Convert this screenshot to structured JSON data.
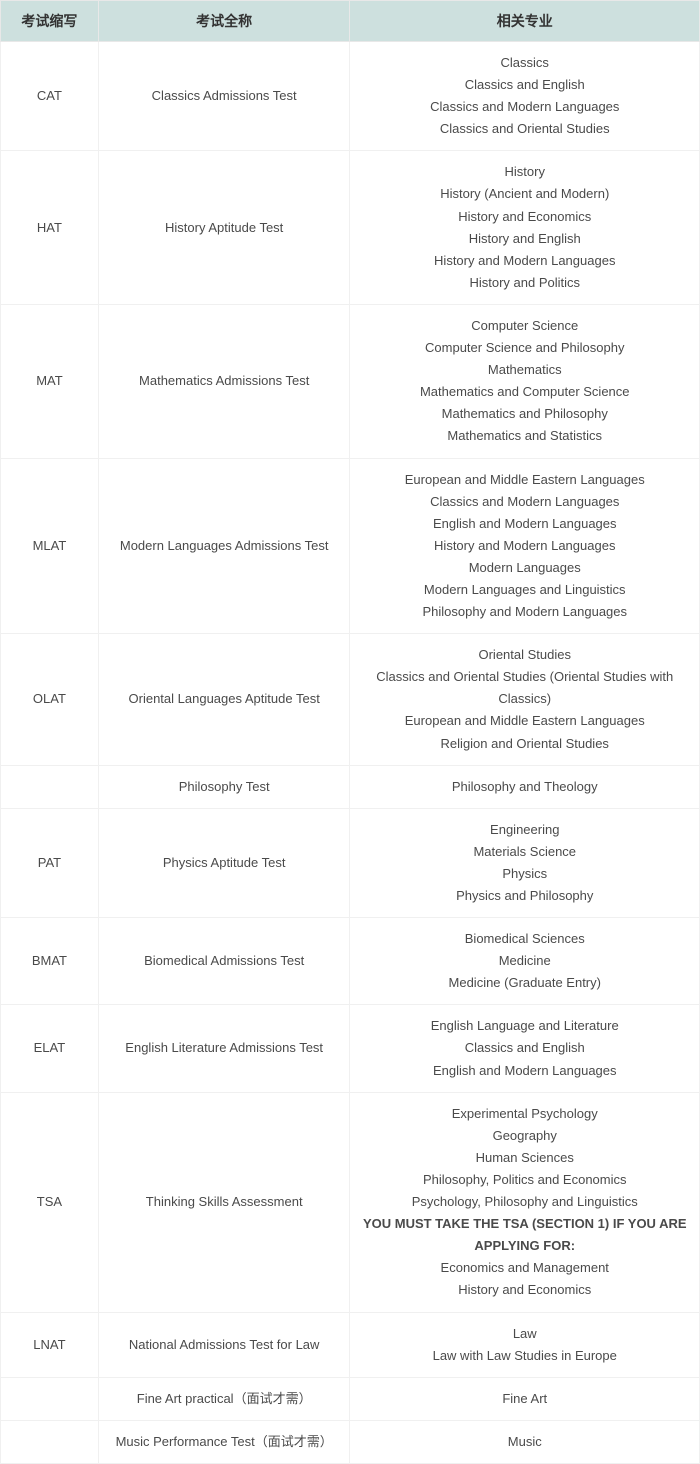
{
  "table": {
    "headers": {
      "abbr": "考试缩写",
      "fullname": "考试全称",
      "subjects": "相关专业"
    },
    "column_widths": [
      "14%",
      "36%",
      "50%"
    ],
    "header_bg_color": "#cde0de",
    "header_text_color": "#333333",
    "border_color": "#f0f0f0",
    "cell_text_color": "#4a4a4a",
    "header_fontsize": 14,
    "cell_fontsize": 13,
    "rows": [
      {
        "abbr": "CAT",
        "fullname": "Classics Admissions Test",
        "subjects": [
          {
            "text": "Classics",
            "bold": false
          },
          {
            "text": "Classics and English",
            "bold": false
          },
          {
            "text": "Classics and Modern Languages",
            "bold": false
          },
          {
            "text": "Classics and Oriental Studies",
            "bold": false
          }
        ]
      },
      {
        "abbr": "HAT",
        "fullname": "History Aptitude Test",
        "subjects": [
          {
            "text": "History",
            "bold": false
          },
          {
            "text": "History (Ancient and Modern)",
            "bold": false
          },
          {
            "text": "History and Economics",
            "bold": false
          },
          {
            "text": "History and English",
            "bold": false
          },
          {
            "text": "History and Modern Languages",
            "bold": false
          },
          {
            "text": "History and Politics",
            "bold": false
          }
        ]
      },
      {
        "abbr": "MAT",
        "fullname": "Mathematics Admissions Test",
        "subjects": [
          {
            "text": "Computer Science",
            "bold": false
          },
          {
            "text": "Computer Science and Philosophy",
            "bold": false
          },
          {
            "text": "Mathematics",
            "bold": false
          },
          {
            "text": "Mathematics and Computer Science",
            "bold": false
          },
          {
            "text": "Mathematics and Philosophy",
            "bold": false
          },
          {
            "text": "Mathematics and Statistics",
            "bold": false
          }
        ]
      },
      {
        "abbr": "MLAT",
        "fullname": "Modern Languages Admissions Test",
        "subjects": [
          {
            "text": "European and Middle Eastern Languages",
            "bold": false
          },
          {
            "text": "Classics and Modern Languages",
            "bold": false
          },
          {
            "text": "English and Modern Languages",
            "bold": false
          },
          {
            "text": "History and Modern Languages",
            "bold": false
          },
          {
            "text": "Modern Languages",
            "bold": false
          },
          {
            "text": "Modern Languages and Linguistics",
            "bold": false
          },
          {
            "text": "Philosophy and Modern Languages",
            "bold": false
          }
        ]
      },
      {
        "abbr": "OLAT",
        "fullname": "Oriental Languages Aptitude Test",
        "subjects": [
          {
            "text": "Oriental Studies",
            "bold": false
          },
          {
            "text": "Classics and Oriental Studies (Oriental Studies with Classics)",
            "bold": false
          },
          {
            "text": "European and Middle Eastern Languages",
            "bold": false
          },
          {
            "text": "Religion and Oriental Studies",
            "bold": false
          }
        ]
      },
      {
        "abbr": "",
        "fullname": "Philosophy Test",
        "subjects": [
          {
            "text": "Philosophy and Theology",
            "bold": false
          }
        ]
      },
      {
        "abbr": "PAT",
        "fullname": "Physics Aptitude Test",
        "subjects": [
          {
            "text": "Engineering",
            "bold": false
          },
          {
            "text": "Materials Science",
            "bold": false
          },
          {
            "text": "Physics",
            "bold": false
          },
          {
            "text": "Physics and Philosophy",
            "bold": false
          }
        ]
      },
      {
        "abbr": "BMAT",
        "fullname": "Biomedical Admissions Test",
        "subjects": [
          {
            "text": "Biomedical Sciences",
            "bold": false
          },
          {
            "text": "Medicine",
            "bold": false
          },
          {
            "text": "Medicine (Graduate Entry)",
            "bold": false
          }
        ]
      },
      {
        "abbr": "ELAT",
        "fullname": "English Literature Admissions Test",
        "subjects": [
          {
            "text": "English Language and Literature",
            "bold": false
          },
          {
            "text": "Classics and English",
            "bold": false
          },
          {
            "text": "English and Modern Languages",
            "bold": false
          }
        ]
      },
      {
        "abbr": "TSA",
        "fullname": "Thinking Skills Assessment",
        "subjects": [
          {
            "text": "Experimental Psychology",
            "bold": false
          },
          {
            "text": "Geography",
            "bold": false
          },
          {
            "text": "Human Sciences",
            "bold": false
          },
          {
            "text": "Philosophy, Politics and Economics",
            "bold": false
          },
          {
            "text": "Psychology, Philosophy and Linguistics",
            "bold": false
          },
          {
            "text": "YOU MUST TAKE THE TSA (SECTION 1) IF YOU ARE APPLYING FOR:",
            "bold": true
          },
          {
            "text": "Economics and Management",
            "bold": false
          },
          {
            "text": "History and Economics",
            "bold": false
          }
        ]
      },
      {
        "abbr": "LNAT",
        "fullname": "National Admissions Test for Law",
        "subjects": [
          {
            "text": "Law",
            "bold": false
          },
          {
            "text": "Law with Law Studies in Europe",
            "bold": false
          }
        ]
      },
      {
        "abbr": "",
        "fullname": "Fine Art practical（面试才需）",
        "subjects": [
          {
            "text": "Fine Art",
            "bold": false
          }
        ]
      },
      {
        "abbr": "",
        "fullname": "Music Performance Test（面试才需）",
        "subjects": [
          {
            "text": "Music",
            "bold": false
          }
        ]
      }
    ]
  }
}
